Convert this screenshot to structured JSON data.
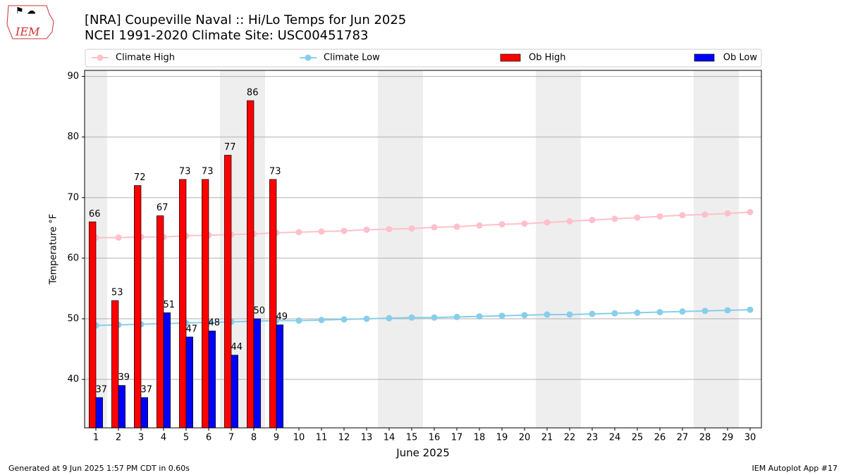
{
  "chart_data": {
    "type": "bar",
    "logo": "IEM",
    "title": "[NRA] Coupeville Naval :: Hi/Lo Temps for Jun 2025",
    "subtitle": "NCEI 1991-2020 Climate Site: USC00451783",
    "x_label": "June 2025",
    "y_label": "Temperature °F",
    "footer_left": "Generated at 9 Jun 2025 1:57 PM CDT in 0.60s",
    "footer_right": "IEM Autoplot App #17",
    "x": [
      1,
      2,
      3,
      4,
      5,
      6,
      7,
      8,
      9,
      10,
      11,
      12,
      13,
      14,
      15,
      16,
      17,
      18,
      19,
      20,
      21,
      22,
      23,
      24,
      25,
      26,
      27,
      28,
      29,
      30
    ],
    "xlim": [
      0.5,
      30.5
    ],
    "xticks": [
      1,
      2,
      3,
      4,
      5,
      6,
      7,
      8,
      9,
      10,
      11,
      12,
      13,
      14,
      15,
      16,
      17,
      18,
      19,
      20,
      21,
      22,
      23,
      24,
      25,
      26,
      27,
      28,
      29,
      30
    ],
    "ylim": [
      32,
      91
    ],
    "yticks": [
      40,
      50,
      60,
      70,
      80,
      90
    ],
    "grid": true,
    "shaded_days": [
      1,
      7,
      8,
      14,
      15,
      21,
      22,
      28,
      29
    ],
    "series": [
      {
        "name": "Climate High",
        "type": "line",
        "color": "pink",
        "values": [
          63.4,
          63.4,
          63.5,
          63.5,
          63.7,
          63.8,
          63.9,
          64.0,
          64.2,
          64.3,
          64.4,
          64.5,
          64.7,
          64.8,
          64.9,
          65.1,
          65.2,
          65.4,
          65.6,
          65.7,
          65.9,
          66.1,
          66.3,
          66.5,
          66.7,
          66.9,
          67.1,
          67.2,
          67.4,
          67.6
        ]
      },
      {
        "name": "Climate Low",
        "type": "line",
        "color": "skyblue",
        "values": [
          48.9,
          49.0,
          49.1,
          49.2,
          49.3,
          49.4,
          49.5,
          49.6,
          49.7,
          49.7,
          49.8,
          49.9,
          50.0,
          50.1,
          50.2,
          50.2,
          50.3,
          50.4,
          50.5,
          50.6,
          50.7,
          50.7,
          50.8,
          50.9,
          51.0,
          51.1,
          51.2,
          51.3,
          51.4,
          51.5
        ]
      },
      {
        "name": "Ob High",
        "type": "bar",
        "color": "#ff0000",
        "values": [
          66,
          53,
          72,
          67,
          73,
          73,
          77,
          86,
          73,
          null,
          null,
          null,
          null,
          null,
          null,
          null,
          null,
          null,
          null,
          null,
          null,
          null,
          null,
          null,
          null,
          null,
          null,
          null,
          null,
          null
        ]
      },
      {
        "name": "Ob Low",
        "type": "bar",
        "color": "#0000ff",
        "values": [
          37,
          39,
          37,
          51,
          47,
          48,
          44,
          50,
          49,
          null,
          null,
          null,
          null,
          null,
          null,
          null,
          null,
          null,
          null,
          null,
          null,
          null,
          null,
          null,
          null,
          null,
          null,
          null,
          null,
          null
        ]
      }
    ]
  }
}
